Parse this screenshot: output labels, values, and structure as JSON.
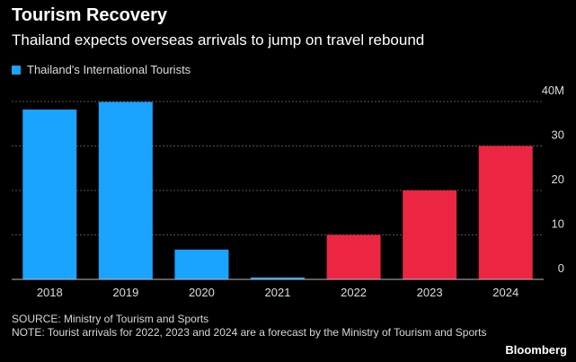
{
  "header": {
    "title": "Tourism Recovery",
    "subtitle": "Thailand expects overseas arrivals to jump on travel rebound"
  },
  "footer": {
    "source": "SOURCE: Ministry of Tourism and Sports",
    "note": "NOTE: Tourist arrivals for 2022, 2023 and 2024 are a forecast by the Ministry of Tourism and Sports",
    "brand": "Bloomberg"
  },
  "colors": {
    "actual": "#1aa3ff",
    "forecast": "#ec2543",
    "grid": "#555555",
    "axis_text": "#dddddd"
  },
  "chart_data": {
    "type": "bar",
    "title": "Tourism Recovery",
    "subtitle": "Thailand expects overseas arrivals to jump on travel rebound",
    "categories": [
      "2018",
      "2019",
      "2020",
      "2021",
      "2022",
      "2023",
      "2024"
    ],
    "series": [
      {
        "name": "Thailand's International Tourists",
        "values": [
          38.2,
          39.9,
          6.7,
          0.43,
          10,
          20,
          30
        ]
      }
    ],
    "forecast_from": "2022",
    "ylim": [
      0,
      40
    ],
    "yticks": [
      0,
      10,
      20,
      30,
      40
    ],
    "ytick_labels": [
      "0",
      "10",
      "20",
      "30",
      "40M"
    ],
    "y_axis_position": "right",
    "grid": true,
    "legend": "top-left"
  }
}
